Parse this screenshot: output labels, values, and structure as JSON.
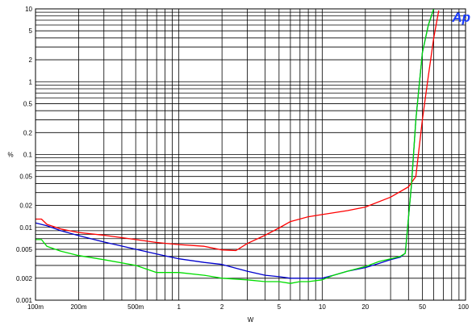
{
  "chart_data": {
    "type": "line",
    "xlabel": "W",
    "ylabel": "%",
    "x_scale": "log",
    "y_scale": "log",
    "xlim": [
      0.1,
      100
    ],
    "ylim": [
      0.001,
      10
    ],
    "grid": true,
    "x_tick_values": [
      0.1,
      0.2,
      0.5,
      1,
      2,
      5,
      10,
      20,
      50,
      100
    ],
    "x_tick_labels": [
      "100m",
      "200m",
      "500m",
      "1",
      "2",
      "5",
      "10",
      "20",
      "50",
      "100"
    ],
    "y_tick_values": [
      0.001,
      0.002,
      0.005,
      0.01,
      0.02,
      0.05,
      0.1,
      0.2,
      0.5,
      1,
      2,
      5,
      10
    ],
    "y_tick_labels": [
      "0.001",
      "0.002",
      "0.005",
      "0.01",
      "0.02",
      "0.05",
      "0.1",
      "0.2",
      "0.5",
      "1",
      "2",
      "5",
      "10"
    ],
    "logo": "Ap",
    "series": [
      {
        "color": "#ff0000",
        "x": [
          0.1,
          0.11,
          0.12,
          0.15,
          0.2,
          0.3,
          0.5,
          0.7,
          1,
          1.5,
          2,
          2.5,
          3,
          4,
          5,
          6,
          8,
          10,
          15,
          20,
          30,
          40,
          45,
          50,
          55,
          60,
          65
        ],
        "y": [
          0.013,
          0.013,
          0.011,
          0.0095,
          0.0085,
          0.0078,
          0.0068,
          0.0062,
          0.0058,
          0.0055,
          0.0049,
          0.0048,
          0.006,
          0.0078,
          0.0098,
          0.012,
          0.014,
          0.015,
          0.017,
          0.019,
          0.026,
          0.036,
          0.05,
          0.3,
          1.2,
          4,
          9.5
        ]
      },
      {
        "color": "#0000cc",
        "x": [
          0.1,
          0.12,
          0.15,
          0.2,
          0.3,
          0.5,
          0.7,
          1,
          1.5,
          2,
          3,
          4,
          5,
          6,
          7,
          8,
          10,
          12,
          15,
          20,
          25,
          30,
          35,
          38,
          42,
          45,
          50,
          55,
          60
        ],
        "y": [
          0.0115,
          0.0105,
          0.009,
          0.0077,
          0.0063,
          0.005,
          0.0043,
          0.0037,
          0.0033,
          0.0031,
          0.0025,
          0.0022,
          0.0021,
          0.002,
          0.002,
          0.002,
          0.002,
          0.0022,
          0.0025,
          0.0028,
          0.0032,
          0.0036,
          0.0039,
          0.0044,
          0.04,
          0.3,
          2.5,
          6,
          10
        ]
      },
      {
        "color": "#00dd00",
        "x": [
          0.1,
          0.11,
          0.12,
          0.15,
          0.2,
          0.3,
          0.5,
          0.7,
          1,
          1.5,
          2,
          3,
          4,
          5,
          6,
          7,
          8,
          10,
          12,
          15,
          20,
          25,
          30,
          35,
          38,
          42,
          45,
          50,
          55,
          60
        ],
        "y": [
          0.0068,
          0.0068,
          0.0055,
          0.0047,
          0.0041,
          0.0036,
          0.003,
          0.0024,
          0.0024,
          0.0022,
          0.002,
          0.0019,
          0.0018,
          0.0018,
          0.0017,
          0.0018,
          0.0018,
          0.0019,
          0.0022,
          0.0025,
          0.0029,
          0.0034,
          0.0037,
          0.004,
          0.0044,
          0.04,
          0.3,
          2.5,
          6,
          10
        ]
      }
    ]
  }
}
